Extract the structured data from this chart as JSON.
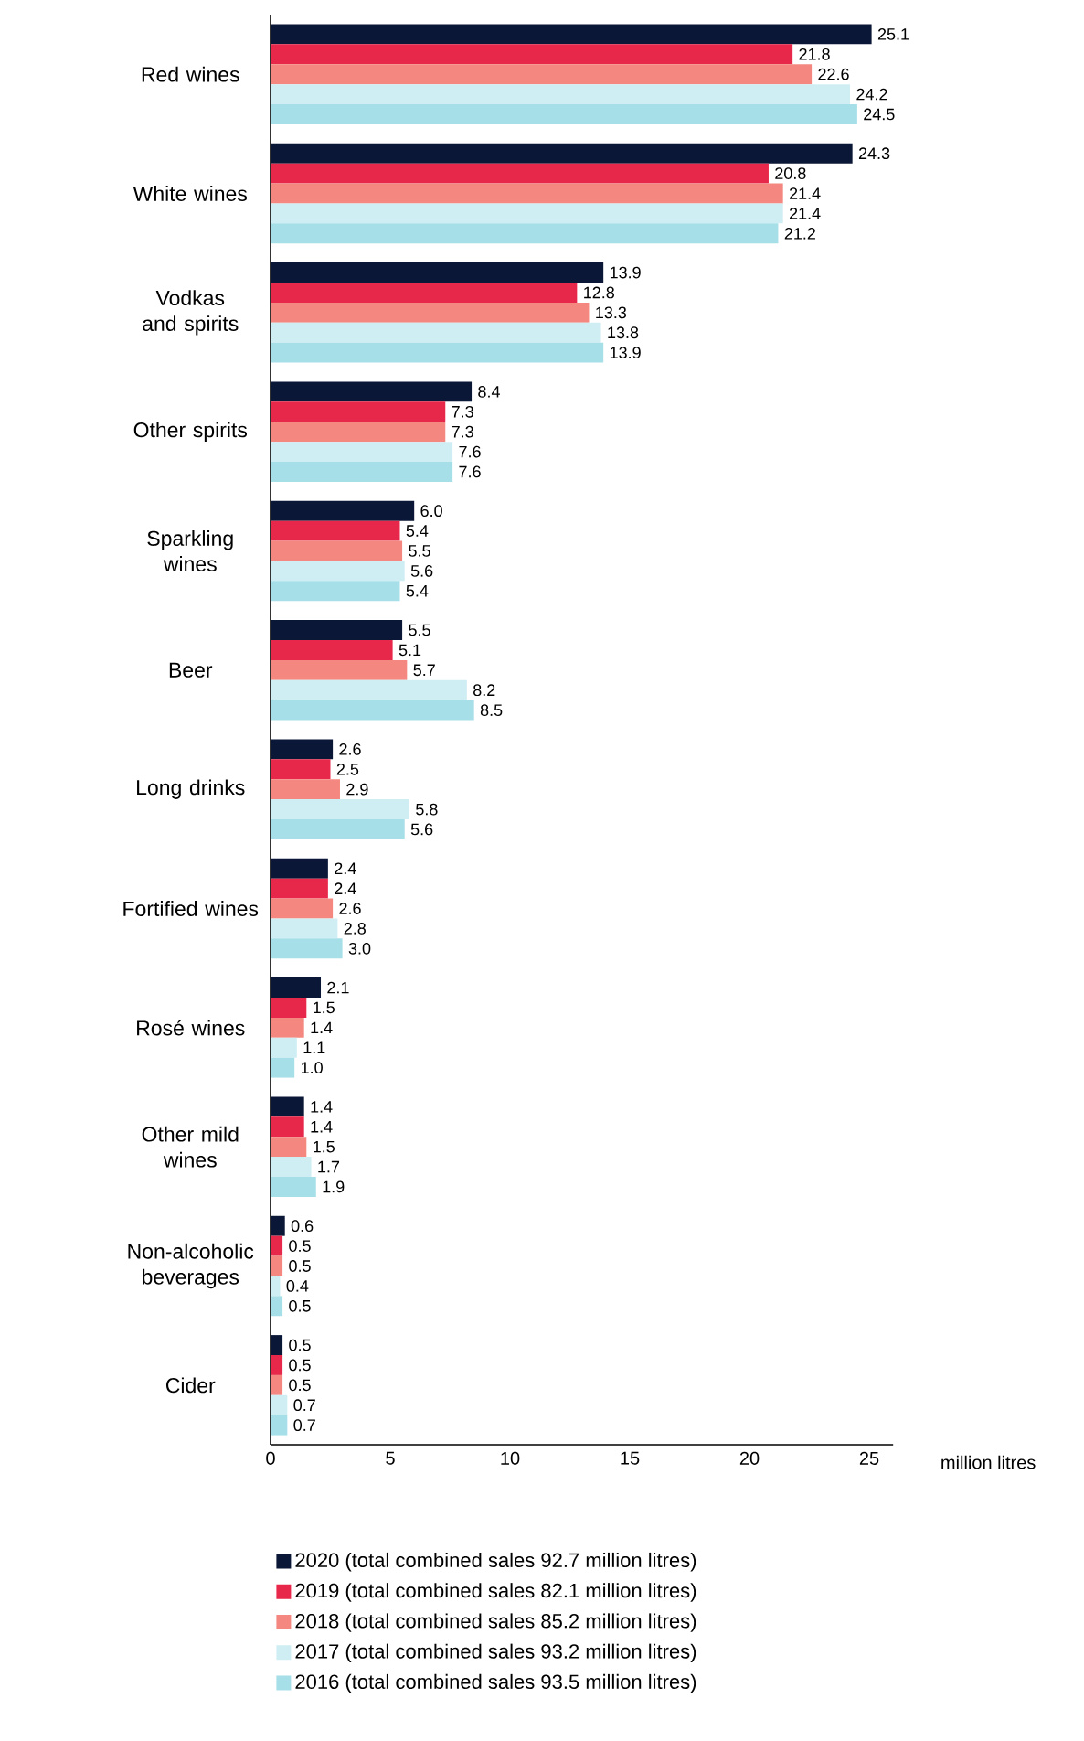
{
  "chart_data": {
    "type": "bar",
    "orientation": "horizontal",
    "xlabel": "million litres",
    "categories": [
      "Red wines",
      "White wines",
      "Vodkas and spirits",
      "Other spirits",
      "Sparkling wines",
      "Beer",
      "Long drinks",
      "Fortified wines",
      "Rosé wines",
      "Other mild wines",
      "Non-alcoholic beverages",
      "Cider"
    ],
    "series": [
      {
        "name": "2020 (total combined sales 92.7 million litres)",
        "color": "#0b1736",
        "values": [
          25.1,
          24.3,
          13.9,
          8.4,
          6.0,
          5.5,
          2.6,
          2.4,
          2.1,
          1.4,
          0.6,
          0.5
        ],
        "value_labels": [
          "25.1",
          "24.3",
          "13.9",
          "8.4",
          "6.0",
          "5.5",
          "2.6",
          "2.4",
          "2.1",
          "1.4",
          "0.6",
          "0.5"
        ]
      },
      {
        "name": "2019 (total combined sales 82.1 million litres)",
        "color": "#e8284a",
        "values": [
          21.8,
          20.8,
          12.8,
          7.3,
          5.4,
          5.1,
          2.5,
          2.4,
          1.5,
          1.4,
          0.5,
          0.5
        ],
        "value_labels": [
          "21.8",
          "20.8",
          "12.8",
          "7.3",
          "5.4",
          "5.1",
          "2.5",
          "2.4",
          "1.5",
          "1.4",
          "0.5",
          "0.5"
        ]
      },
      {
        "name": "2018 (total combined sales 85.2 million litres)",
        "color": "#f4877f",
        "values": [
          22.6,
          21.4,
          13.3,
          7.3,
          5.5,
          5.7,
          2.9,
          2.6,
          1.4,
          1.5,
          0.5,
          0.5
        ],
        "value_labels": [
          "22.6",
          "21.4",
          "13.3",
          "7.3",
          "5.5",
          "5.7",
          "2.9",
          "2.6",
          "1.4",
          "1.5",
          "0.5",
          "0.5"
        ]
      },
      {
        "name": "2017 (total combined sales 93.2 million litres)",
        "color": "#cfeef4",
        "values": [
          24.2,
          21.4,
          13.8,
          7.6,
          5.6,
          8.2,
          5.8,
          2.8,
          1.1,
          1.7,
          0.4,
          0.7
        ],
        "value_labels": [
          "24.2",
          "21.4",
          "13.8",
          "7.6",
          "5.6",
          "8.2",
          "5.8",
          "2.8",
          "1.1",
          "1.7",
          "0.4",
          "0.7"
        ]
      },
      {
        "name": "2016 (total combined sales 93.5 million litres)",
        "color": "#a7dfe8",
        "values": [
          24.5,
          21.2,
          13.9,
          7.6,
          5.4,
          8.5,
          5.6,
          3.0,
          1.0,
          1.9,
          0.5,
          0.7
        ],
        "value_labels": [
          "24.5",
          "21.2",
          "13.9",
          "7.6",
          "5.4",
          "8.5",
          "5.6",
          "3.0",
          "1.0",
          "1.9",
          "0.5",
          "0.7"
        ]
      }
    ],
    "xlim": [
      0,
      26
    ],
    "xticks": [
      0,
      5,
      10,
      15,
      20,
      25
    ],
    "legend": "bottom"
  }
}
